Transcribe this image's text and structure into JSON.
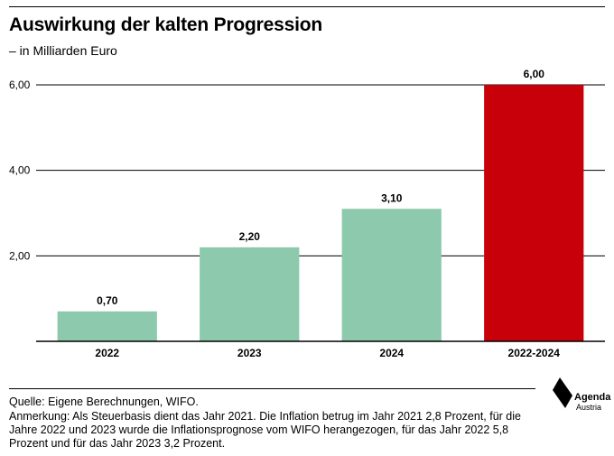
{
  "header": {
    "title": "Auswirkung der kalten Progression",
    "subtitle": "– in Milliarden Euro"
  },
  "chart_data": {
    "type": "bar",
    "categories": [
      "2022",
      "2023",
      "2024",
      "2022-2024"
    ],
    "values": [
      0.7,
      2.2,
      3.1,
      6.0
    ],
    "value_labels": [
      "0,70",
      "2,20",
      "3,10",
      "6,00"
    ],
    "bar_colors": [
      "#8dcaad",
      "#8dcaad",
      "#8dcaad",
      "#c8000a"
    ],
    "ylim": [
      0,
      6
    ],
    "yticks": [
      2,
      4,
      6
    ],
    "ytick_labels": [
      "2,00",
      "4,00",
      "6,00"
    ],
    "grid": true,
    "title": "Auswirkung der kalten Progression",
    "subtitle": "– in Milliarden Euro",
    "xlabel": "",
    "ylabel": ""
  },
  "footer": {
    "source": "Quelle: Eigene Berechnungen, WIFO.",
    "note": "Anmerkung: Als Steuerbasis dient das Jahr 2021. Die Inflation betrug im Jahr 2021 2,8 Prozent, für die Jahre 2022 und 2023 wurde die Inflationsprognose vom WIFO herangezogen, für das Jahr 2022 5,8 Prozent und für das Jahr 2023 3,2 Prozent."
  },
  "logo": {
    "line1": "Agenda",
    "line2": "Austria"
  }
}
